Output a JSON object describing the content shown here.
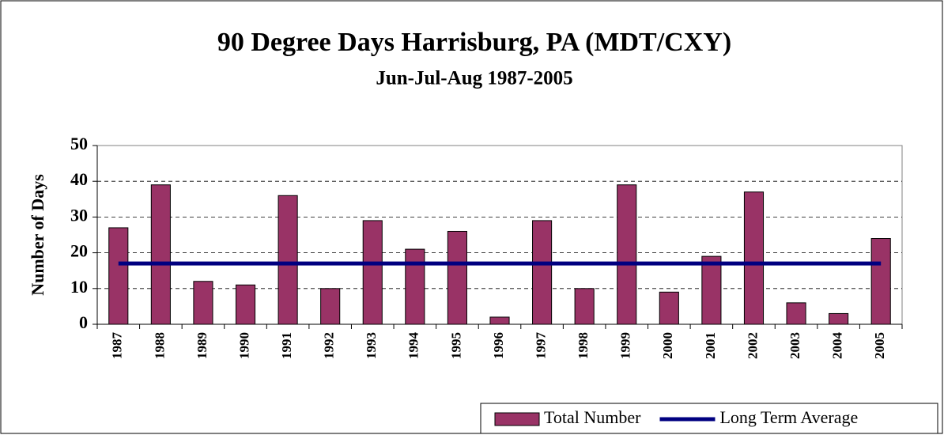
{
  "chart_data": {
    "type": "bar",
    "title": "90 Degree Days Harrisburg, PA  (MDT/CXY)",
    "subtitle": "Jun-Jul-Aug 1987-2005",
    "y_label": "Number of Days",
    "categories": [
      "1987",
      "1988",
      "1989",
      "1990",
      "1991",
      "1992",
      "1993",
      "1994",
      "1995",
      "1996",
      "1997",
      "1998",
      "1999",
      "2000",
      "2001",
      "2002",
      "2003",
      "2004",
      "2005"
    ],
    "series": [
      {
        "name": "Total Number",
        "type": "bar",
        "color": "#993366",
        "values": [
          27,
          39,
          12,
          11,
          36,
          10,
          29,
          21,
          26,
          2,
          29,
          10,
          39,
          9,
          19,
          37,
          6,
          3,
          24
        ]
      },
      {
        "name": "Long Term Average",
        "type": "line",
        "color": "#000080",
        "values": [
          17,
          17,
          17,
          17,
          17,
          17,
          17,
          17,
          17,
          17,
          17,
          17,
          17,
          17,
          17,
          17,
          17,
          17,
          17
        ]
      }
    ],
    "ylim": [
      0,
      50
    ],
    "yticks": [
      0,
      10,
      20,
      30,
      40,
      50
    ],
    "grid": true,
    "legend": "bottom-right"
  }
}
